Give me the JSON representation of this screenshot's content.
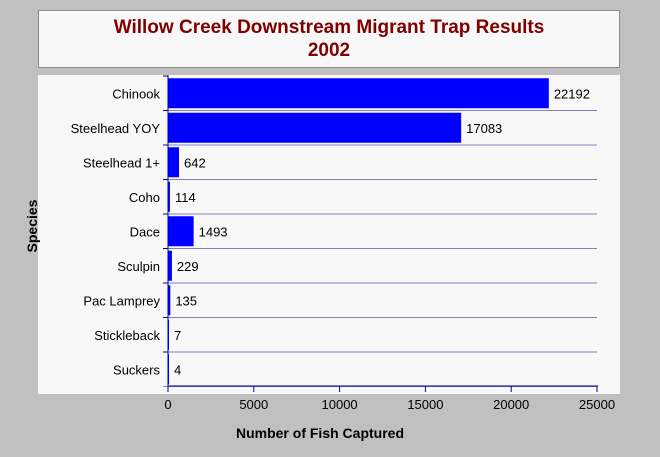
{
  "chart_data": {
    "type": "bar",
    "orientation": "horizontal",
    "title": "Willow Creek Downstream Migrant Trap Results",
    "subtitle": "2002",
    "xlabel": "Number of Fish Captured",
    "ylabel": "Species",
    "categories": [
      "Chinook",
      "Steelhead YOY",
      "Steelhead 1+",
      "Coho",
      "Dace",
      "Sculpin",
      "Pac Lamprey",
      "Stickleback",
      "Suckers"
    ],
    "values": [
      22192,
      17083,
      642,
      114,
      1493,
      229,
      135,
      7,
      4
    ],
    "xlim": [
      0,
      25000
    ],
    "xticks": [
      0,
      5000,
      10000,
      15000,
      20000,
      25000
    ],
    "grid": "horizontal",
    "legend": "none",
    "colors": {
      "bar": "#0000ff",
      "title": "#800000",
      "plot_bg": "#f8f8f8",
      "background": "#c0c0c0"
    }
  }
}
